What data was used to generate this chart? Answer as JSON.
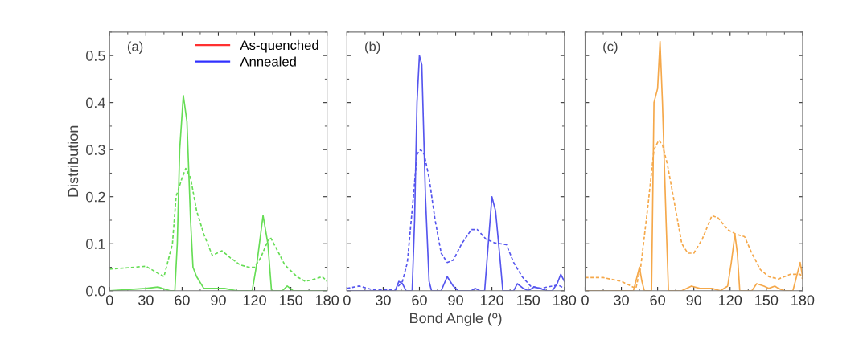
{
  "chart_data": [
    {
      "type": "line",
      "annotations": [
        "(a)"
      ],
      "ylabel": "Distribution",
      "xlim": [
        0,
        180
      ],
      "xticks": [
        0,
        30,
        60,
        90,
        120,
        150,
        180
      ],
      "ylim": [
        0,
        0.55
      ],
      "yticks": [
        {
          "value": 0,
          "label": "0.0"
        },
        0.1,
        0.2,
        0.3,
        0.4,
        0.5
      ],
      "legend": "top right",
      "grid": false,
      "series": [
        {
          "name": "As-quenched",
          "color": "#ff3030",
          "line_style": "solid"
        },
        {
          "name": "Annealed",
          "color": "#3030ff",
          "line_style": "solid"
        },
        {
          "color": "#66dd55",
          "line_style": "dashed",
          "x": [
            0,
            30,
            45,
            52,
            55,
            60,
            63,
            67,
            72,
            78,
            85,
            93,
            100,
            108,
            115,
            120,
            125,
            130,
            133,
            138,
            145,
            155,
            162,
            170,
            176,
            180
          ],
          "values": [
            0.046,
            0.052,
            0.03,
            0.1,
            0.2,
            0.24,
            0.26,
            0.24,
            0.17,
            0.12,
            0.075,
            0.085,
            0.07,
            0.055,
            0.05,
            0.05,
            0.07,
            0.1,
            0.114,
            0.09,
            0.055,
            0.03,
            0.02,
            0.025,
            0.03,
            0.02
          ]
        },
        {
          "color": "#66dd55",
          "line_style": "solid",
          "x": [
            0,
            30,
            40,
            50,
            54,
            56,
            58,
            61,
            64,
            67,
            69,
            72,
            78,
            95,
            105,
            118,
            122,
            127,
            131,
            134,
            143,
            147,
            152,
            180
          ],
          "values": [
            0,
            0.005,
            0.008,
            0,
            0,
            0.1,
            0.3,
            0.415,
            0.36,
            0.15,
            0.05,
            0.03,
            0.005,
            0.005,
            0,
            0,
            0.06,
            0.16,
            0.1,
            0,
            0,
            0.01,
            0,
            0
          ]
        }
      ]
    },
    {
      "type": "line",
      "annotations": [
        "(b)"
      ],
      "xlabel": "Bond Angle (º)",
      "xlim": [
        0,
        180
      ],
      "xticks": [
        0,
        30,
        60,
        90,
        120,
        150,
        180
      ],
      "ylim": [
        0,
        0.55
      ],
      "yticks": [
        0,
        0.1,
        0.2,
        0.3,
        0.4,
        0.5
      ],
      "tick_labels": "x",
      "grid": false,
      "series": [
        {
          "color": "#5555ee",
          "line_style": "dashed",
          "x": [
            0,
            10,
            20,
            40,
            46,
            50,
            55,
            58,
            61,
            64,
            68,
            73,
            78,
            83,
            88,
            95,
            103,
            108,
            115,
            122,
            132,
            138,
            145,
            152,
            160,
            170,
            175,
            180
          ],
          "values": [
            0.005,
            0.01,
            0.003,
            0.002,
            0.02,
            0.06,
            0.2,
            0.29,
            0.3,
            0.29,
            0.24,
            0.15,
            0.08,
            0.06,
            0.065,
            0.1,
            0.13,
            0.13,
            0.11,
            0.102,
            0.098,
            0.06,
            0.03,
            0.01,
            0.005,
            0.01,
            0.012,
            0.005
          ]
        },
        {
          "color": "#5555ee",
          "line_style": "solid",
          "x": [
            0,
            40,
            43,
            46,
            49,
            54,
            56,
            58,
            60,
            62,
            65,
            68,
            70,
            78,
            83,
            88,
            92,
            103,
            106,
            110,
            114,
            117,
            120,
            123,
            127,
            129,
            138,
            141,
            146,
            150,
            155,
            160,
            165,
            170,
            174,
            177,
            180
          ],
          "values": [
            0,
            0,
            0.02,
            0.015,
            0,
            0,
            0.15,
            0.4,
            0.5,
            0.48,
            0.2,
            0.02,
            0,
            0,
            0.03,
            0.01,
            0,
            0,
            0.005,
            0,
            0,
            0.1,
            0.2,
            0.17,
            0.06,
            0,
            0,
            0.015,
            0.005,
            0,
            0.008,
            0.005,
            0,
            0,
            0.015,
            0.035,
            0.02
          ]
        }
      ]
    },
    {
      "type": "line",
      "annotations": [
        "(c)"
      ],
      "xlim": [
        0,
        180
      ],
      "xticks": [
        0,
        30,
        60,
        90,
        120,
        150,
        180
      ],
      "ylim": [
        0,
        0.55
      ],
      "yticks": [
        0,
        0.1,
        0.2,
        0.3,
        0.4,
        0.5
      ],
      "tick_labels": "x",
      "grid": false,
      "series": [
        {
          "color": "#f5a84a",
          "line_style": "dashed",
          "x": [
            0,
            15,
            30,
            38,
            42,
            46,
            52,
            57,
            61,
            64,
            68,
            73,
            80,
            85,
            90,
            97,
            105,
            110,
            118,
            125,
            132,
            138,
            145,
            152,
            160,
            170,
            178,
            180
          ],
          "values": [
            0.028,
            0.028,
            0.02,
            0.01,
            0.005,
            0.05,
            0.18,
            0.3,
            0.32,
            0.31,
            0.27,
            0.2,
            0.1,
            0.08,
            0.08,
            0.11,
            0.16,
            0.155,
            0.13,
            0.12,
            0.115,
            0.08,
            0.045,
            0.03,
            0.025,
            0.035,
            0.035,
            0.025
          ]
        },
        {
          "color": "#f5a84a",
          "line_style": "solid",
          "x": [
            0,
            40,
            43,
            45,
            47,
            49,
            55,
            57,
            60,
            62,
            64,
            67,
            69,
            80,
            88,
            95,
            105,
            112,
            118,
            121,
            124,
            126,
            128,
            138,
            142,
            148,
            152,
            157,
            160,
            165,
            172,
            176,
            178,
            180
          ],
          "values": [
            0,
            0,
            0.03,
            0.05,
            0.02,
            0,
            0,
            0.4,
            0.43,
            0.53,
            0.4,
            0.15,
            0,
            0,
            0.01,
            0.005,
            0.005,
            0,
            0.01,
            0.06,
            0.12,
            0.08,
            0,
            0,
            0.015,
            0.01,
            0.005,
            0.01,
            0.005,
            0,
            0,
            0.04,
            0.06,
            0.03
          ]
        }
      ]
    }
  ]
}
